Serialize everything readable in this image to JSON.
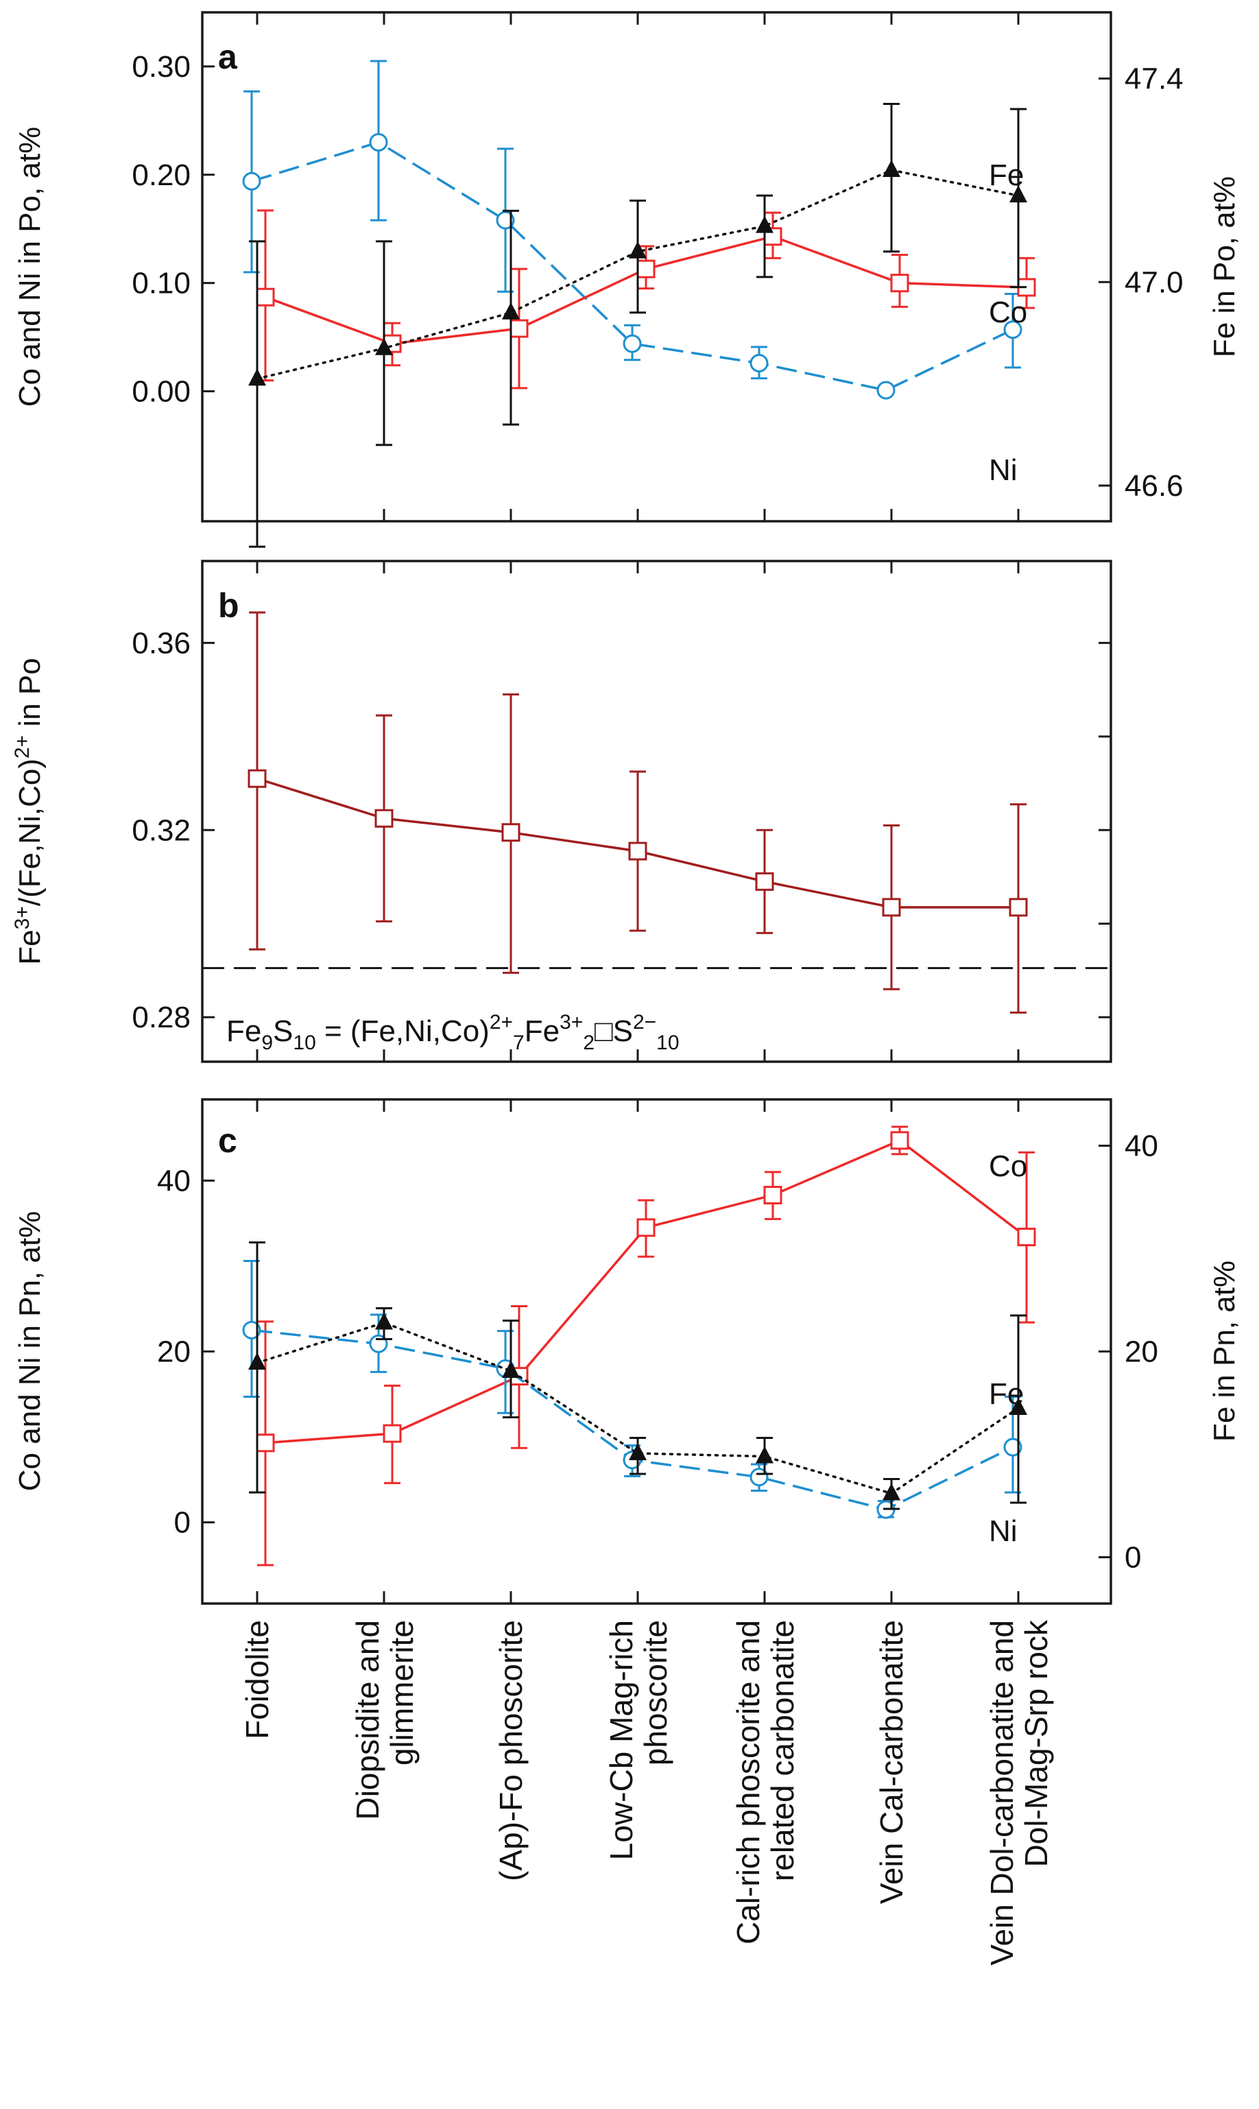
{
  "categories": [
    "Foidolite",
    "Diopsidite and\nglimmerite",
    "(Ap)-Fo phoscorite",
    "Low-Cb Mag-rich\nphoscorite",
    "Cal-rich phoscorite and\nrelated carbonatite",
    "Vein Cal-carbonatite",
    "Vein Dol-carbonatite and\nDol-Mag-Srp rock"
  ],
  "colors": {
    "co": "#ee2a2a",
    "ni": "#1e8fd0",
    "fe": "#111111",
    "ratio": "#a01e1e"
  },
  "chart_data": [
    {
      "panel": "a",
      "type": "line",
      "ylabel": "Co and Ni in Po, at%",
      "ylabel_right": "Fe in Po, at%",
      "ylim": [
        -0.12,
        0.35
      ],
      "y2lim": [
        46.53,
        47.53
      ],
      "yticks": [
        "0.00",
        "0.10",
        "0.20",
        "0.30"
      ],
      "y2ticks": [
        "46.6",
        "47.0",
        "47.4"
      ],
      "series": [
        {
          "name": "Ni",
          "axis": "left",
          "marker": "circle",
          "style": "dashed",
          "values": [
            0.194,
            0.23,
            0.158,
            0.044,
            0.026,
            0.001,
            0.057
          ],
          "err_low": [
            0.11,
            0.158,
            0.092,
            0.029,
            0.012,
            0.0,
            0.022
          ],
          "err_high": [
            0.277,
            0.305,
            0.224,
            0.061,
            0.041,
            0.003,
            0.09
          ]
        },
        {
          "name": "Co",
          "axis": "left",
          "marker": "square",
          "style": "solid",
          "values": [
            0.087,
            0.044,
            0.058,
            0.113,
            0.143,
            0.1,
            0.096
          ],
          "err_low": [
            0.01,
            0.024,
            0.003,
            0.095,
            0.123,
            0.078,
            0.077
          ],
          "err_high": [
            0.167,
            0.063,
            0.113,
            0.134,
            0.165,
            0.126,
            0.123
          ]
        },
        {
          "name": "Fe",
          "axis": "right",
          "marker": "triangle",
          "style": "dotted",
          "values": [
            46.81,
            46.87,
            46.94,
            47.06,
            47.11,
            47.22,
            47.17
          ],
          "err_low": [
            46.48,
            46.68,
            46.72,
            46.94,
            47.01,
            47.06,
            46.99
          ],
          "err_high": [
            47.08,
            47.08,
            47.14,
            47.16,
            47.17,
            47.35,
            47.34
          ]
        }
      ]
    },
    {
      "panel": "b",
      "type": "line",
      "ylabel": "Fe3+/(Fe,Ni,Co)2+ in Po",
      "ylim": [
        0.2705,
        0.3775
      ],
      "yticks": [
        "0.28",
        "0.32",
        "0.36"
      ],
      "reference_line": {
        "value": 0.2905,
        "style": "dashed"
      },
      "series": [
        {
          "name": "Fe3+/(Fe,Ni,Co)2+",
          "marker": "square",
          "style": "solid",
          "values": [
            0.331,
            0.3225,
            0.3195,
            0.3155,
            0.309,
            0.3035,
            0.3035
          ],
          "err_low": [
            0.2945,
            0.3005,
            0.2895,
            0.2985,
            0.298,
            0.286,
            0.281
          ],
          "err_high": [
            0.3665,
            0.3445,
            0.349,
            0.3325,
            0.32,
            0.321,
            0.3255
          ]
        }
      ]
    },
    {
      "panel": "c",
      "type": "line",
      "ylabel": "Co and Ni in Pn, at%",
      "ylabel_right": "Fe in Pn, at%",
      "ylim": [
        -9.5,
        49.5
      ],
      "y2lim": [
        -4.5,
        44.5
      ],
      "yticks": [
        "0",
        "20",
        "40"
      ],
      "y2ticks": [
        "0",
        "20",
        "40"
      ],
      "series": [
        {
          "name": "Co",
          "axis": "left",
          "marker": "square",
          "style": "solid",
          "values": [
            9.3,
            10.4,
            17.1,
            34.5,
            38.3,
            44.7,
            33.4
          ],
          "err_low": [
            -5.0,
            4.6,
            8.7,
            31.1,
            35.5,
            43.1,
            23.4
          ],
          "err_high": [
            23.5,
            16.0,
            25.3,
            37.7,
            41.0,
            46.3,
            43.3
          ]
        },
        {
          "name": "Ni",
          "axis": "left",
          "marker": "circle",
          "style": "dashed",
          "values": [
            22.5,
            20.9,
            18.0,
            7.3,
            5.3,
            1.5,
            8.8
          ],
          "err_low": [
            14.7,
            17.6,
            12.8,
            5.4,
            3.7,
            0.6,
            3.5
          ],
          "err_high": [
            30.6,
            24.3,
            22.4,
            9.0,
            6.8,
            2.5,
            14.7
          ]
        },
        {
          "name": "Fe",
          "axis": "right",
          "marker": "triangle",
          "style": "dotted",
          "values": [
            18.9,
            22.8,
            18.1,
            10.1,
            9.8,
            6.2,
            14.5
          ],
          "err_low": [
            6.3,
            21.2,
            13.6,
            8.1,
            8.1,
            4.7,
            5.3
          ],
          "err_high": [
            30.6,
            24.2,
            23.0,
            11.6,
            11.6,
            7.6,
            23.5
          ]
        }
      ]
    }
  ]
}
